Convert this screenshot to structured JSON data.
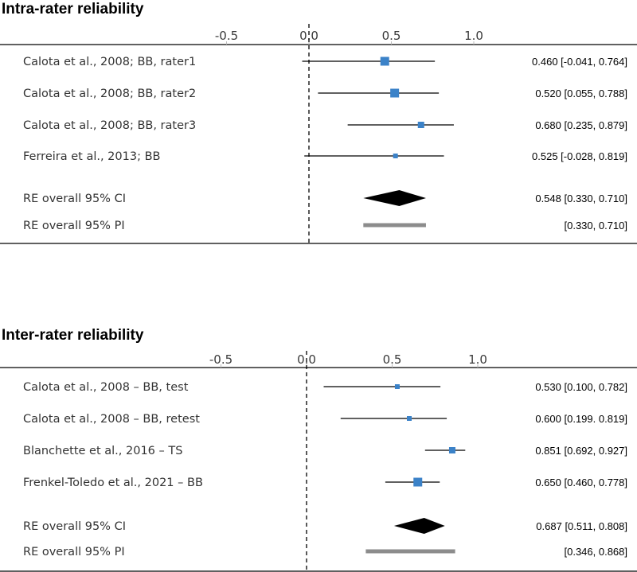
{
  "chart_data": [
    {
      "type": "forest",
      "title": "Intra-rater reliability",
      "xlim": [
        -1.0,
        1.2
      ],
      "x_ticks": [
        "-0.5",
        "0.0",
        "0.5",
        "1.0"
      ],
      "x_tick_values": [
        -0.5,
        0.0,
        0.5,
        1.0
      ],
      "rows": [
        {
          "label": "Calota et al., 2008; BB, rater1",
          "kind": "study",
          "estimate": 0.46,
          "lower": -0.041,
          "upper": 0.764,
          "weight": 3,
          "text": "0.460 [-0.041, 0.764]"
        },
        {
          "label": "Calota et al., 2008; BB, rater2",
          "kind": "study",
          "estimate": 0.52,
          "lower": 0.055,
          "upper": 0.788,
          "weight": 3,
          "text": "0.520 [0.055, 0.788]"
        },
        {
          "label": "Calota et al., 2008; BB, rater3",
          "kind": "study",
          "estimate": 0.68,
          "lower": 0.235,
          "upper": 0.879,
          "weight": 2,
          "text": "0.680 [0.235, 0.879]"
        },
        {
          "label": "Ferreira et al., 2013; BB",
          "kind": "study",
          "estimate": 0.525,
          "lower": -0.028,
          "upper": 0.819,
          "weight": 1,
          "text": "0.525 [-0.028, 0.819]"
        },
        {
          "label": "RE overall 95% CI",
          "kind": "ci",
          "estimate": 0.548,
          "lower": 0.33,
          "upper": 0.71,
          "text": "0.548 [0.330, 0.710]"
        },
        {
          "label": "RE overall 95% PI",
          "kind": "pi",
          "lower": 0.33,
          "upper": 0.71,
          "text": "[0.330, 0.710]"
        }
      ]
    },
    {
      "type": "forest",
      "title": "Inter-rater reliability",
      "xlim": [
        -1.0,
        1.2
      ],
      "x_ticks": [
        "-0.5",
        "0.0",
        "0.5",
        "1.0"
      ],
      "x_tick_values": [
        -0.5,
        0.0,
        0.5,
        1.0
      ],
      "rows": [
        {
          "label": "Calota et al., 2008 – BB, test",
          "kind": "study",
          "estimate": 0.53,
          "lower": 0.1,
          "upper": 0.782,
          "weight": 1,
          "text": "0.530 [0.100, 0.782]"
        },
        {
          "label": "Calota et al., 2008 – BB, retest",
          "kind": "study",
          "estimate": 0.6,
          "lower": 0.199,
          "upper": 0.819,
          "weight": 1,
          "text": "0.600 [0.199. 0.819]"
        },
        {
          "label": "Blanchette et al., 2016 – TS",
          "kind": "study",
          "estimate": 0.851,
          "lower": 0.692,
          "upper": 0.927,
          "weight": 2,
          "text": "0.851 [0.692, 0.927]"
        },
        {
          "label": "Frenkel-Toledo et al., 2021 – BB",
          "kind": "study",
          "estimate": 0.65,
          "lower": 0.46,
          "upper": 0.778,
          "weight": 3,
          "text": "0.650 [0.460, 0.778]"
        },
        {
          "label": "RE overall 95% CI",
          "kind": "ci",
          "estimate": 0.687,
          "lower": 0.511,
          "upper": 0.808,
          "text": "0.687 [0.511, 0.808]"
        },
        {
          "label": "RE overall 95% PI",
          "kind": "pi",
          "lower": 0.346,
          "upper": 0.868,
          "text": "[0.346, 0.868]"
        }
      ]
    }
  ],
  "colors": {
    "marker": "#3b82c8",
    "line": "#000000",
    "diamond": "#000000",
    "pi_bar": "#8c8c8c"
  }
}
